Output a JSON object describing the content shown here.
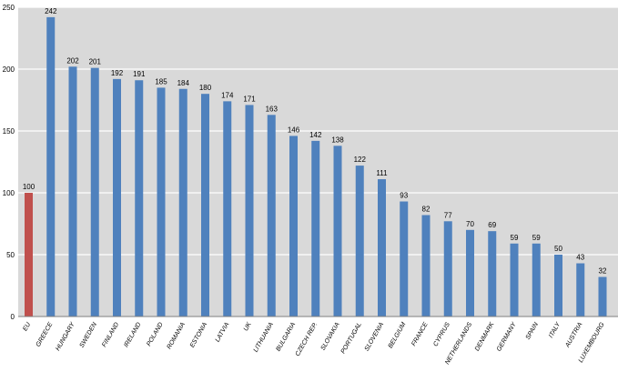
{
  "chart_data": {
    "type": "bar",
    "title": "",
    "xlabel": "",
    "ylabel": "",
    "categories": [
      "EU",
      "GREECE",
      "HUNGARY",
      "SWEDEN",
      "FINLAND",
      "IRELAND",
      "POLAND",
      "ROMANIA",
      "ESTONIA",
      "LATVIA",
      "UK",
      "LITHUANIA",
      "BULGARIA",
      "CZECH REP.",
      "SLOVAKIA",
      "PORTUGAL",
      "SLOVENIA",
      "BELGIUM",
      "FRANCE",
      "CYPRUS",
      "NETHERLANDS",
      "DENMARK",
      "GERMANY",
      "SPAIN",
      "ITALY",
      "AUSTRIA",
      "LUXEMBOURG"
    ],
    "values": [
      100,
      242,
      202,
      201,
      192,
      191,
      185,
      184,
      180,
      174,
      171,
      163,
      146,
      142,
      138,
      122,
      111,
      93,
      82,
      77,
      70,
      69,
      59,
      59,
      50,
      43,
      32
    ],
    "ylim": [
      0,
      250
    ],
    "yticks": [
      0,
      50,
      100,
      150,
      200,
      250
    ],
    "grid": true,
    "legend": "none",
    "colors": {
      "highlight_bar": "#c0504d",
      "bar": "#4f81bd",
      "plot_background": "#d9d9d9",
      "gridline": "#ffffff",
      "axis": "#7f7f7f",
      "text": "#000000"
    },
    "highlight_category": "EU"
  }
}
